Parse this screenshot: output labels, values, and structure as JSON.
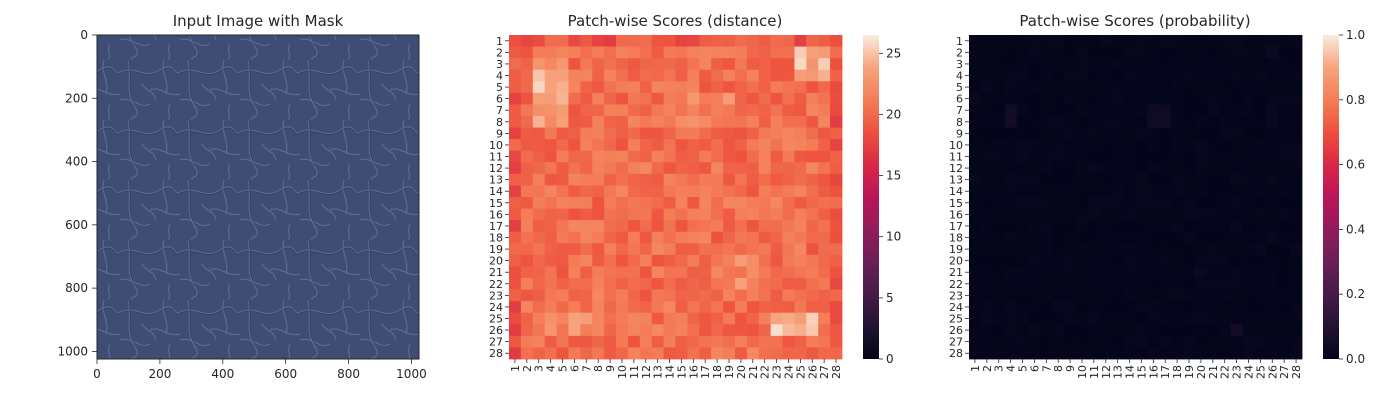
{
  "colors": {
    "leather_base": "#3f4c73",
    "leather_grain": "#7d8bb0",
    "axis": "#262626"
  },
  "chart_data": [
    {
      "type": "image",
      "title": "Input Image with Mask",
      "xlim": [
        0,
        1024
      ],
      "ylim": [
        1024,
        0
      ],
      "xticks": [
        0,
        200,
        400,
        600,
        800,
        1000
      ],
      "yticks": [
        0,
        200,
        400,
        600,
        800,
        1000
      ],
      "image_content": "blue leather texture"
    },
    {
      "type": "heatmap",
      "title": "Patch-wise Scores (distance)",
      "rows": [
        "1",
        "2",
        "3",
        "4",
        "5",
        "6",
        "7",
        "8",
        "9",
        "10",
        "11",
        "12",
        "13",
        "14",
        "15",
        "16",
        "17",
        "18",
        "19",
        "20",
        "21",
        "22",
        "23",
        "24",
        "25",
        "26",
        "27",
        "28"
      ],
      "cols": [
        "1",
        "2",
        "3",
        "4",
        "5",
        "6",
        "7",
        "8",
        "9",
        "10",
        "11",
        "12",
        "13",
        "14",
        "15",
        "16",
        "17",
        "18",
        "19",
        "20",
        "21",
        "22",
        "23",
        "24",
        "25",
        "26",
        "27",
        "28"
      ],
      "colorbar": {
        "min": 0,
        "max": 26.5,
        "ticks": [
          0,
          5,
          10,
          15,
          20,
          25
        ]
      },
      "values": "28x28 patch distance scores, mostly ~19-22; high spots (~24-26) around rows 3-8 cols 3-5, rows 2-4 cols 25-27, rows 25-26 cols 23-26"
    },
    {
      "type": "heatmap",
      "title": "Patch-wise Scores (probability)",
      "rows": [
        "1",
        "2",
        "3",
        "4",
        "5",
        "6",
        "7",
        "8",
        "9",
        "10",
        "11",
        "12",
        "13",
        "14",
        "15",
        "16",
        "17",
        "18",
        "19",
        "20",
        "21",
        "22",
        "23",
        "24",
        "25",
        "26",
        "27",
        "28"
      ],
      "cols": [
        "1",
        "2",
        "3",
        "4",
        "5",
        "6",
        "7",
        "8",
        "9",
        "10",
        "11",
        "12",
        "13",
        "14",
        "15",
        "16",
        "17",
        "18",
        "19",
        "20",
        "21",
        "22",
        "23",
        "24",
        "25",
        "26",
        "27",
        "28"
      ],
      "colorbar": {
        "min": 0.0,
        "max": 1.0,
        "ticks": [
          "0.0",
          "0.2",
          "0.4",
          "0.6",
          "0.8",
          "1.0"
        ]
      },
      "values": "28x28 anomaly probabilities, all near 0.0 with faint spots ~0.03-0.05 at row 7-8 col 4, rows 7-8 cols 16-17, row 26 col 23"
    }
  ]
}
